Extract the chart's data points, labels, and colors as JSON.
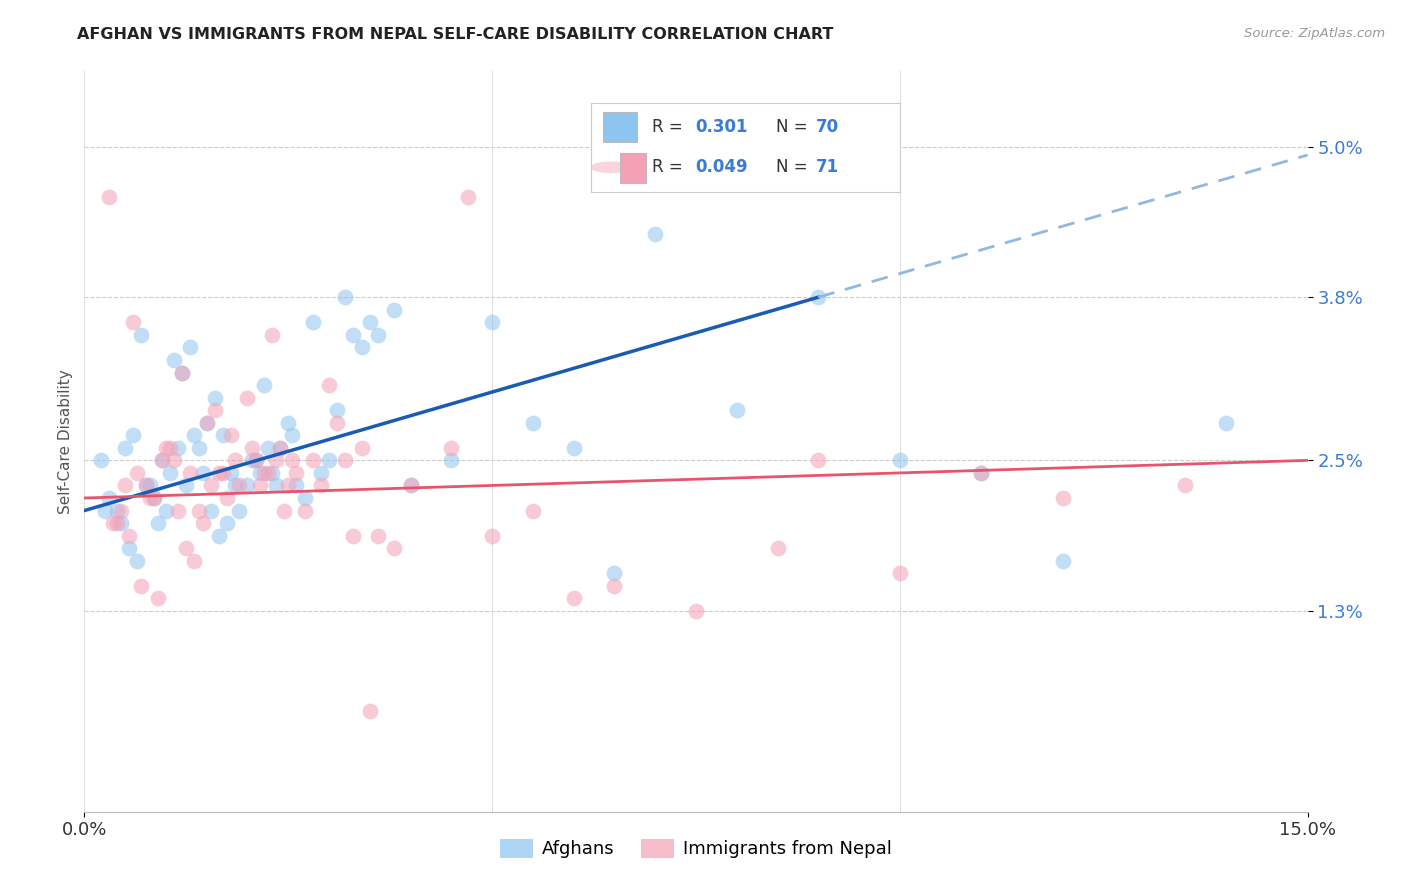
{
  "title": "AFGHAN VS IMMIGRANTS FROM NEPAL SELF-CARE DISABILITY CORRELATION CHART",
  "source": "Source: ZipAtlas.com",
  "ylabel": "Self-Care Disability",
  "ytick_labels": [
    "5.0%",
    "3.8%",
    "2.5%",
    "1.3%"
  ],
  "ytick_values": [
    5.0,
    3.8,
    2.5,
    1.3
  ],
  "xlim": [
    0.0,
    15.0
  ],
  "ylim": [
    -0.3,
    5.6
  ],
  "afghan_color": "#8ec4f0",
  "nepal_color": "#f4a0b5",
  "trendline_afghan_color": "#1a5cb5",
  "trendline_nepal_color": "#e8556a",
  "trendline_afghan_dash_color": "#90b8e0",
  "background_color": "#ffffff",
  "grid_color": "#cccccc",
  "label_color": "#3a7bd5",
  "afghans_label": "Afghans",
  "nepal_label": "Immigrants from Nepal",
  "afghan_x": [
    0.2,
    0.3,
    0.4,
    0.5,
    0.6,
    0.7,
    0.8,
    0.9,
    1.0,
    1.1,
    1.2,
    1.3,
    1.4,
    1.5,
    1.6,
    1.7,
    1.8,
    1.9,
    2.0,
    2.1,
    2.2,
    2.3,
    2.4,
    2.5,
    2.6,
    2.7,
    2.8,
    2.9,
    3.0,
    3.1,
    3.2,
    3.4,
    3.6,
    3.8,
    4.0,
    4.5,
    5.0,
    5.5,
    6.0,
    6.5,
    7.0,
    8.0,
    9.0,
    10.0,
    11.0,
    12.0,
    14.0,
    0.25,
    0.45,
    0.55,
    0.65,
    0.75,
    0.85,
    0.95,
    1.05,
    1.15,
    1.25,
    1.35,
    1.45,
    1.55,
    1.65,
    1.75,
    1.85,
    2.05,
    2.15,
    2.25,
    2.35,
    2.55,
    3.3,
    3.5
  ],
  "afghan_y": [
    2.5,
    2.2,
    2.1,
    2.6,
    2.7,
    3.5,
    2.3,
    2.0,
    2.1,
    3.3,
    3.2,
    3.4,
    2.6,
    2.8,
    3.0,
    2.7,
    2.4,
    2.1,
    2.3,
    2.5,
    3.1,
    2.4,
    2.6,
    2.8,
    2.3,
    2.2,
    3.6,
    2.4,
    2.5,
    2.9,
    3.8,
    3.4,
    3.5,
    3.7,
    2.3,
    2.5,
    3.6,
    2.8,
    2.6,
    1.6,
    4.3,
    2.9,
    3.8,
    2.5,
    2.4,
    1.7,
    2.8,
    2.1,
    2.0,
    1.8,
    1.7,
    2.3,
    2.2,
    2.5,
    2.4,
    2.6,
    2.3,
    2.7,
    2.4,
    2.1,
    1.9,
    2.0,
    2.3,
    2.5,
    2.4,
    2.6,
    2.3,
    2.7,
    3.5,
    3.6
  ],
  "nepal_x": [
    0.3,
    0.4,
    0.5,
    0.6,
    0.7,
    0.8,
    0.9,
    1.0,
    1.1,
    1.2,
    1.3,
    1.4,
    1.5,
    1.6,
    1.7,
    1.8,
    1.9,
    2.0,
    2.1,
    2.2,
    2.3,
    2.4,
    2.5,
    2.6,
    2.7,
    2.8,
    2.9,
    3.0,
    3.2,
    3.4,
    3.6,
    3.8,
    4.0,
    4.5,
    5.0,
    5.5,
    6.0,
    6.5,
    7.5,
    8.5,
    9.0,
    10.0,
    11.0,
    12.0,
    13.5,
    0.35,
    0.45,
    0.55,
    0.65,
    0.75,
    0.85,
    0.95,
    1.05,
    1.15,
    1.25,
    1.35,
    1.45,
    1.55,
    1.65,
    1.75,
    1.85,
    2.05,
    2.15,
    2.25,
    2.35,
    2.45,
    2.55,
    3.1,
    3.3,
    3.5,
    4.7
  ],
  "nepal_y": [
    4.6,
    2.0,
    2.3,
    3.6,
    1.5,
    2.2,
    1.4,
    2.6,
    2.5,
    3.2,
    2.4,
    2.1,
    2.8,
    2.9,
    2.4,
    2.7,
    2.3,
    3.0,
    2.5,
    2.4,
    3.5,
    2.6,
    2.3,
    2.4,
    2.1,
    2.5,
    2.3,
    3.1,
    2.5,
    2.6,
    1.9,
    1.8,
    2.3,
    2.6,
    1.9,
    2.1,
    1.4,
    1.5,
    1.3,
    1.8,
    2.5,
    1.6,
    2.4,
    2.2,
    2.3,
    2.0,
    2.1,
    1.9,
    2.4,
    2.3,
    2.2,
    2.5,
    2.6,
    2.1,
    1.8,
    1.7,
    2.0,
    2.3,
    2.4,
    2.2,
    2.5,
    2.6,
    2.3,
    2.4,
    2.5,
    2.1,
    2.5,
    2.8,
    1.9,
    0.5,
    4.6
  ],
  "solid_line_end_x": 9.0,
  "legend_r1_val": "0.301",
  "legend_n1_val": "70",
  "legend_r2_val": "0.049",
  "legend_n2_val": "71"
}
